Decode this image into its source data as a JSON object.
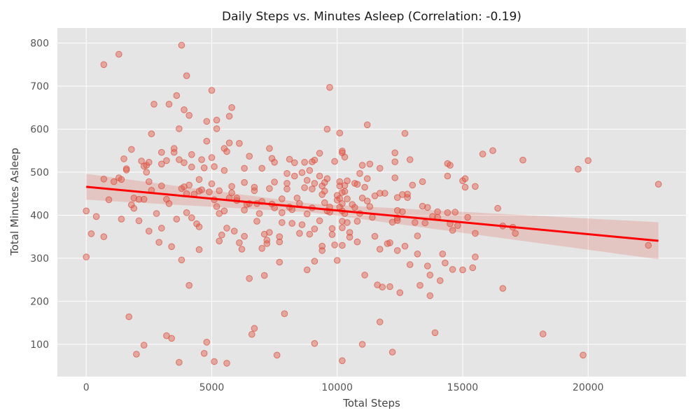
{
  "chart_data": {
    "type": "scatter",
    "title": "Daily Steps vs. Minutes Asleep (Correlation: -0.19)",
    "xlabel": "Total Steps",
    "ylabel": "Total Minutes Asleep",
    "xlim": [
      -1150,
      23900
    ],
    "ylim": [
      25,
      835
    ],
    "xticks": [
      0,
      5000,
      10000,
      15000,
      20000
    ],
    "yticks": [
      100,
      200,
      300,
      400,
      500,
      600,
      700,
      800
    ],
    "grid": true,
    "colors": {
      "background": "#e5e5e5",
      "points": "#e05a4a",
      "fit_line": "#ff0000",
      "band": "#e05a4a"
    },
    "regression": {
      "intercept": 466,
      "slope": -0.0055,
      "x_range": [
        0,
        22800
      ],
      "ci_half_width_start": 30,
      "ci_half_width_mid": 10,
      "ci_half_width_end": 43
    },
    "points": [
      [
        0,
        303
      ],
      [
        0,
        410
      ],
      [
        200,
        357
      ],
      [
        400,
        397
      ],
      [
        700,
        350
      ],
      [
        700,
        750
      ],
      [
        700,
        484
      ],
      [
        900,
        436
      ],
      [
        1100,
        478
      ],
      [
        1300,
        774
      ],
      [
        1300,
        487
      ],
      [
        1400,
        483
      ],
      [
        1400,
        391
      ],
      [
        1500,
        531
      ],
      [
        1600,
        508
      ],
      [
        1600,
        505
      ],
      [
        1700,
        164
      ],
      [
        1800,
        424
      ],
      [
        1800,
        553
      ],
      [
        1900,
        440
      ],
      [
        1900,
        416
      ],
      [
        2000,
        77
      ],
      [
        2100,
        437
      ],
      [
        2100,
        387
      ],
      [
        2200,
        526
      ],
      [
        2300,
        98
      ],
      [
        2300,
        514
      ],
      [
        2300,
        437
      ],
      [
        2400,
        500
      ],
      [
        2400,
        516
      ],
      [
        2500,
        478
      ],
      [
        2500,
        523
      ],
      [
        2500,
        363
      ],
      [
        2600,
        458
      ],
      [
        2600,
        589
      ],
      [
        2700,
        658
      ],
      [
        2800,
        404
      ],
      [
        2900,
        337
      ],
      [
        3000,
        546
      ],
      [
        3000,
        468
      ],
      [
        3000,
        519
      ],
      [
        3000,
        370
      ],
      [
        3200,
        120
      ],
      [
        3200,
        437
      ],
      [
        3200,
        527
      ],
      [
        3300,
        658
      ],
      [
        3300,
        427
      ],
      [
        3400,
        327
      ],
      [
        3400,
        114
      ],
      [
        3500,
        546
      ],
      [
        3500,
        555
      ],
      [
        3600,
        678
      ],
      [
        3600,
        391
      ],
      [
        3700,
        529
      ],
      [
        3700,
        601
      ],
      [
        3700,
        58
      ],
      [
        3800,
        795
      ],
      [
        3800,
        462
      ],
      [
        3800,
        296
      ],
      [
        3900,
        645
      ],
      [
        3900,
        522
      ],
      [
        3900,
        466
      ],
      [
        4000,
        724
      ],
      [
        4000,
        450
      ],
      [
        4000,
        406
      ],
      [
        4100,
        470
      ],
      [
        4100,
        237
      ],
      [
        4100,
        632
      ],
      [
        4200,
        512
      ],
      [
        4200,
        394
      ],
      [
        4200,
        541
      ],
      [
        4300,
        449
      ],
      [
        4400,
        380
      ],
      [
        4500,
        483
      ],
      [
        4500,
        456
      ],
      [
        4500,
        373
      ],
      [
        4500,
        320
      ],
      [
        4600,
        459
      ],
      [
        4600,
        529
      ],
      [
        4700,
        79
      ],
      [
        4700,
        510
      ],
      [
        4800,
        618
      ],
      [
        4800,
        572
      ],
      [
        4800,
        105
      ],
      [
        4900,
        454
      ],
      [
        5000,
        690
      ],
      [
        5000,
        473
      ],
      [
        5000,
        534
      ],
      [
        5100,
        436
      ],
      [
        5100,
        513
      ],
      [
        5100,
        60
      ],
      [
        5200,
        621
      ],
      [
        5200,
        601
      ],
      [
        5200,
        420
      ],
      [
        5300,
        457
      ],
      [
        5300,
        404
      ],
      [
        5300,
        340
      ],
      [
        5400,
        354
      ],
      [
        5500,
        504
      ],
      [
        5500,
        410
      ],
      [
        5500,
        555
      ],
      [
        5600,
        548
      ],
      [
        5600,
        370
      ],
      [
        5600,
        56
      ],
      [
        5700,
        630
      ],
      [
        5700,
        568
      ],
      [
        5700,
        440
      ],
      [
        5800,
        650
      ],
      [
        5800,
        467
      ],
      [
        5800,
        452
      ],
      [
        5900,
        363
      ],
      [
        6000,
        440
      ],
      [
        6000,
        434
      ],
      [
        6100,
        567
      ],
      [
        6100,
        336
      ],
      [
        6200,
        321
      ],
      [
        6300,
        509
      ],
      [
        6300,
        476
      ],
      [
        6300,
        412
      ],
      [
        6300,
        351
      ],
      [
        6400,
        425
      ],
      [
        6500,
        253
      ],
      [
        6500,
        537
      ],
      [
        6500,
        427
      ],
      [
        6600,
        123
      ],
      [
        6700,
        137
      ],
      [
        6700,
        465
      ],
      [
        6700,
        457
      ],
      [
        6800,
        427
      ],
      [
        6800,
        386
      ],
      [
        6900,
        404
      ],
      [
        7000,
        509
      ],
      [
        7000,
        432
      ],
      [
        7000,
        323
      ],
      [
        7100,
        356
      ],
      [
        7100,
        260
      ],
      [
        7200,
        342
      ],
      [
        7200,
        334
      ],
      [
        7300,
        555
      ],
      [
        7300,
        462
      ],
      [
        7300,
        360
      ],
      [
        7400,
        532
      ],
      [
        7400,
        426
      ],
      [
        7500,
        523
      ],
      [
        7500,
        477
      ],
      [
        7500,
        417
      ],
      [
        7600,
        75
      ],
      [
        7700,
        350
      ],
      [
        7700,
        338
      ],
      [
        7700,
        291
      ],
      [
        7800,
        438
      ],
      [
        7800,
        406
      ],
      [
        7800,
        383
      ],
      [
        7900,
        171
      ],
      [
        8000,
        497
      ],
      [
        8000,
        474
      ],
      [
        8000,
        461
      ],
      [
        8100,
        419
      ],
      [
        8100,
        530
      ],
      [
        8200,
        413
      ],
      [
        8200,
        381
      ],
      [
        8300,
        522
      ],
      [
        8300,
        491
      ],
      [
        8400,
        440
      ],
      [
        8500,
        358
      ],
      [
        8500,
        427
      ],
      [
        8600,
        499
      ],
      [
        8600,
        378
      ],
      [
        8700,
        523
      ],
      [
        8700,
        464
      ],
      [
        8800,
        481
      ],
      [
        8800,
        403
      ],
      [
        8800,
        273
      ],
      [
        8900,
        504
      ],
      [
        8900,
        356
      ],
      [
        9000,
        461
      ],
      [
        9000,
        524
      ],
      [
        9000,
        417
      ],
      [
        9100,
        528
      ],
      [
        9100,
        474
      ],
      [
        9100,
        368
      ],
      [
        9100,
        293
      ],
      [
        9100,
        102
      ],
      [
        9300,
        491
      ],
      [
        9300,
        544
      ],
      [
        9300,
        387
      ],
      [
        9400,
        468
      ],
      [
        9400,
        448
      ],
      [
        9400,
        328
      ],
      [
        9400,
        318
      ],
      [
        9500,
        476
      ],
      [
        9500,
        429
      ],
      [
        9500,
        456
      ],
      [
        9600,
        600
      ],
      [
        9600,
        485
      ],
      [
        9600,
        410
      ],
      [
        9700,
        697
      ],
      [
        9700,
        419
      ],
      [
        9700,
        407
      ],
      [
        9800,
        369
      ],
      [
        9800,
        355
      ],
      [
        9900,
        525
      ],
      [
        9900,
        331
      ],
      [
        10000,
        446
      ],
      [
        10000,
        435
      ],
      [
        10000,
        295
      ],
      [
        10100,
        591
      ],
      [
        10100,
        478
      ],
      [
        10100,
        468
      ],
      [
        10100,
        439
      ],
      [
        10100,
        419
      ],
      [
        10200,
        545
      ],
      [
        10200,
        549
      ],
      [
        10200,
        453
      ],
      [
        10200,
        427
      ],
      [
        10200,
        410
      ],
      [
        10200,
        386
      ],
      [
        10200,
        371
      ],
      [
        10200,
        330
      ],
      [
        10200,
        62
      ],
      [
        10300,
        535
      ],
      [
        10300,
        469
      ],
      [
        10300,
        455
      ],
      [
        10300,
        404
      ],
      [
        10400,
        480
      ],
      [
        10400,
        438
      ],
      [
        10400,
        383
      ],
      [
        10500,
        360
      ],
      [
        10500,
        349
      ],
      [
        10600,
        425
      ],
      [
        10700,
        474
      ],
      [
        10700,
        418
      ],
      [
        10800,
        472
      ],
      [
        10800,
        386
      ],
      [
        10800,
        338
      ],
      [
        10900,
        497
      ],
      [
        10900,
        404
      ],
      [
        11000,
        516
      ],
      [
        11000,
        440
      ],
      [
        11000,
        100
      ],
      [
        11100,
        465
      ],
      [
        11100,
        261
      ],
      [
        11200,
        610
      ],
      [
        11200,
        485
      ],
      [
        11200,
        433
      ],
      [
        11300,
        519
      ],
      [
        11300,
        420
      ],
      [
        11400,
        395
      ],
      [
        11500,
        445
      ],
      [
        11500,
        351
      ],
      [
        11600,
        238
      ],
      [
        11700,
        509
      ],
      [
        11700,
        451
      ],
      [
        11700,
        321
      ],
      [
        11700,
        152
      ],
      [
        11800,
        233
      ],
      [
        11900,
        451
      ],
      [
        12000,
        334
      ],
      [
        12100,
        336
      ],
      [
        12100,
        234
      ],
      [
        12200,
        82
      ],
      [
        12200,
        384
      ],
      [
        12300,
        545
      ],
      [
        12300,
        524
      ],
      [
        12300,
        487
      ],
      [
        12400,
        441
      ],
      [
        12400,
        411
      ],
      [
        12400,
        394
      ],
      [
        12400,
        388
      ],
      [
        12400,
        318
      ],
      [
        12500,
        220
      ],
      [
        12600,
        448
      ],
      [
        12600,
        408
      ],
      [
        12700,
        328
      ],
      [
        12700,
        590
      ],
      [
        12800,
        441
      ],
      [
        12800,
        449
      ],
      [
        12900,
        285
      ],
      [
        12900,
        529
      ],
      [
        13000,
        470
      ],
      [
        13100,
        383
      ],
      [
        13200,
        352
      ],
      [
        13200,
        310
      ],
      [
        13300,
        237
      ],
      [
        13400,
        478
      ],
      [
        13400,
        421
      ],
      [
        13500,
        382
      ],
      [
        13600,
        282
      ],
      [
        13600,
        418
      ],
      [
        13700,
        213
      ],
      [
        13700,
        261
      ],
      [
        13800,
        397
      ],
      [
        13900,
        127
      ],
      [
        14000,
        395
      ],
      [
        14000,
        408
      ],
      [
        14100,
        248
      ],
      [
        14200,
        310
      ],
      [
        14300,
        289
      ],
      [
        14400,
        406
      ],
      [
        14400,
        520
      ],
      [
        14400,
        491
      ],
      [
        14500,
        516
      ],
      [
        14500,
        380
      ],
      [
        14600,
        365
      ],
      [
        14600,
        274
      ],
      [
        14700,
        407
      ],
      [
        14800,
        376
      ],
      [
        15000,
        480
      ],
      [
        15000,
        273
      ],
      [
        15100,
        485
      ],
      [
        15100,
        465
      ],
      [
        15200,
        395
      ],
      [
        15400,
        278
      ],
      [
        15500,
        467
      ],
      [
        15500,
        358
      ],
      [
        15500,
        303
      ],
      [
        15800,
        542
      ],
      [
        16200,
        550
      ],
      [
        16400,
        416
      ],
      [
        16600,
        230
      ],
      [
        16600,
        375
      ],
      [
        17000,
        372
      ],
      [
        17100,
        358
      ],
      [
        17400,
        528
      ],
      [
        18200,
        124
      ],
      [
        19600,
        507
      ],
      [
        19800,
        75
      ],
      [
        20000,
        527
      ],
      [
        22400,
        330
      ],
      [
        22800,
        472
      ]
    ]
  }
}
